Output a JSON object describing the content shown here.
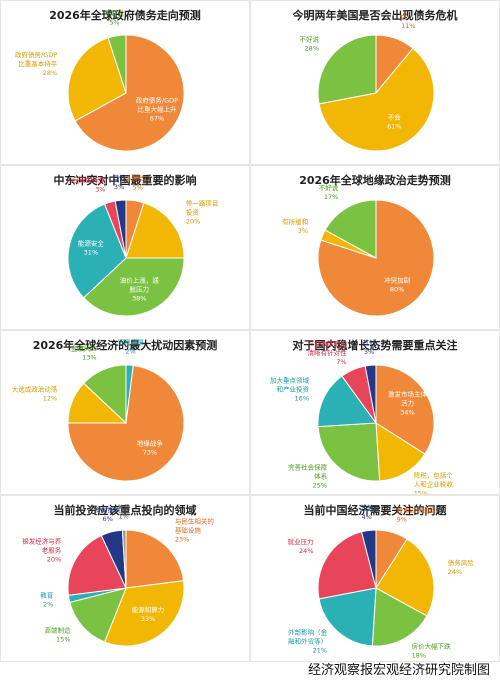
{
  "footer": "经济观察报宏观经济研究院制图",
  "colors": {
    "orange": "#F0883A",
    "amber": "#F2B705",
    "green": "#7CC242",
    "teal": "#2BB0B6",
    "red": "#E8445A",
    "navy": "#24388A",
    "gray": "#999999"
  },
  "chart_data": [
    {
      "type": "pie",
      "title": "2026年全球政府债务走向预测",
      "slices": [
        {
          "label": "政府债务/GDP\n比重大幅上升",
          "value": 67,
          "pct": "67%",
          "color": "#F0883A"
        },
        {
          "label": "政府债务/GDP\n比重基本持平",
          "value": 28,
          "pct": "28%",
          "color": "#F2B705"
        },
        {
          "label": "不好说",
          "value": 5,
          "pct": "5%",
          "color": "#7CC242"
        }
      ]
    },
    {
      "type": "pie",
      "title": "今明两年美国是否会出现债务危机",
      "slices": [
        {
          "label": "会",
          "value": 11,
          "pct": "11%",
          "color": "#F0883A"
        },
        {
          "label": "不会",
          "value": 61,
          "pct": "61%",
          "color": "#F2B705"
        },
        {
          "label": "不好说",
          "value": 28,
          "pct": "28%",
          "color": "#7CC242"
        }
      ]
    },
    {
      "type": "pie",
      "title": "中东冲突对中国最重要的影响",
      "slices": [
        {
          "label": "外贸出口",
          "value": 5,
          "pct": "5%",
          "color": "#F0883A"
        },
        {
          "label": "带一路项目\n投资",
          "value": 20,
          "pct": "20%",
          "color": "#F2B705"
        },
        {
          "label": "油价上涨，通\n胀压力",
          "value": 38,
          "pct": "38%",
          "color": "#7CC242"
        },
        {
          "label": "能源安全",
          "value": 31,
          "pct": "31%",
          "color": "#2BB0B6"
        },
        {
          "label": "人民币国际化",
          "value": 3,
          "pct": "3%",
          "color": "#E8445A"
        },
        {
          "label": "其他",
          "value": 3,
          "pct": "3%",
          "color": "#24388A"
        }
      ]
    },
    {
      "type": "pie",
      "title": "2026年全球地缘政治走势预测",
      "slices": [
        {
          "label": "冲突加剧",
          "value": 80,
          "pct": "80%",
          "color": "#F0883A"
        },
        {
          "label": "有所缓和",
          "value": 3,
          "pct": "3%",
          "color": "#F2B705"
        },
        {
          "label": "不好说",
          "value": 17,
          "pct": "17%",
          "color": "#7CC242"
        }
      ]
    },
    {
      "type": "pie",
      "title": "2026年全球经济的最大扰动因素预测",
      "slices": [
        {
          "label": "贸易摩擦",
          "value": 2,
          "pct": "2%",
          "color": "#2BB0B6"
        },
        {
          "label": "地缘战争",
          "value": 73,
          "pct": "73%",
          "color": "#F0883A"
        },
        {
          "label": "大选或政治动荡",
          "value": 12,
          "pct": "12%",
          "color": "#F2B705"
        },
        {
          "label": "金融风险",
          "value": 13,
          "pct": "13%",
          "color": "#7CC242"
        }
      ]
    },
    {
      "type": "pie",
      "title": "对于国内稳增长态势需要重点关注",
      "slices": [
        {
          "label": "激发市场主体\n活力",
          "value": 34,
          "pct": "34%",
          "color": "#F0883A"
        },
        {
          "label": "降税，包括个\n人和企业税收",
          "value": 15,
          "pct": "15%",
          "color": "#F2B705"
        },
        {
          "label": "完善社会保障\n体系",
          "value": 25,
          "pct": "25%",
          "color": "#7CC242"
        },
        {
          "label": "加大重点领域\n和产业投资",
          "value": 16,
          "pct": "16%",
          "color": "#2BB0B6"
        },
        {
          "label": "产业政策更加\n清晰有针对性",
          "value": 7,
          "pct": "7%",
          "color": "#E8445A"
        },
        {
          "label": "其他",
          "value": 3,
          "pct": "3%",
          "color": "#24388A"
        }
      ]
    },
    {
      "type": "pie",
      "title": "当前投资应该重点投向的领域",
      "slices": [
        {
          "label": "与民生相关的\n基础设施",
          "value": 23,
          "pct": "23%",
          "color": "#F0883A"
        },
        {
          "label": "能源和算力",
          "value": 33,
          "pct": "33%",
          "color": "#F2B705"
        },
        {
          "label": "高端制造",
          "value": 15,
          "pct": "15%",
          "color": "#7CC242"
        },
        {
          "label": "教育",
          "value": 2,
          "pct": "2%",
          "color": "#2BB0B6"
        },
        {
          "label": "银发经济与养\n老服务",
          "value": 20,
          "pct": "20%",
          "color": "#E8445A"
        },
        {
          "label": "乡村振兴",
          "value": 6,
          "pct": "6%",
          "color": "#24388A"
        },
        {
          "label": "其他",
          "value": 1,
          "pct": "1%",
          "color": "#999999"
        }
      ]
    },
    {
      "type": "pie",
      "title": "当前中国经济需要关注的问题",
      "slices": [
        {
          "label": "股市过快回调",
          "value": 9,
          "pct": "9%",
          "color": "#F0883A"
        },
        {
          "label": "债务风险",
          "value": 24,
          "pct": "24%",
          "color": "#F2B705"
        },
        {
          "label": "房价大幅下跌",
          "value": 18,
          "pct": "18%",
          "color": "#7CC242"
        },
        {
          "label": "外部影响（金\n融和外贸等）",
          "value": 21,
          "pct": "21%",
          "color": "#2BB0B6"
        },
        {
          "label": "就业压力",
          "value": 24,
          "pct": "24%",
          "color": "#E8445A"
        },
        {
          "label": "其他",
          "value": 4,
          "pct": "4%",
          "color": "#24388A"
        }
      ]
    }
  ]
}
